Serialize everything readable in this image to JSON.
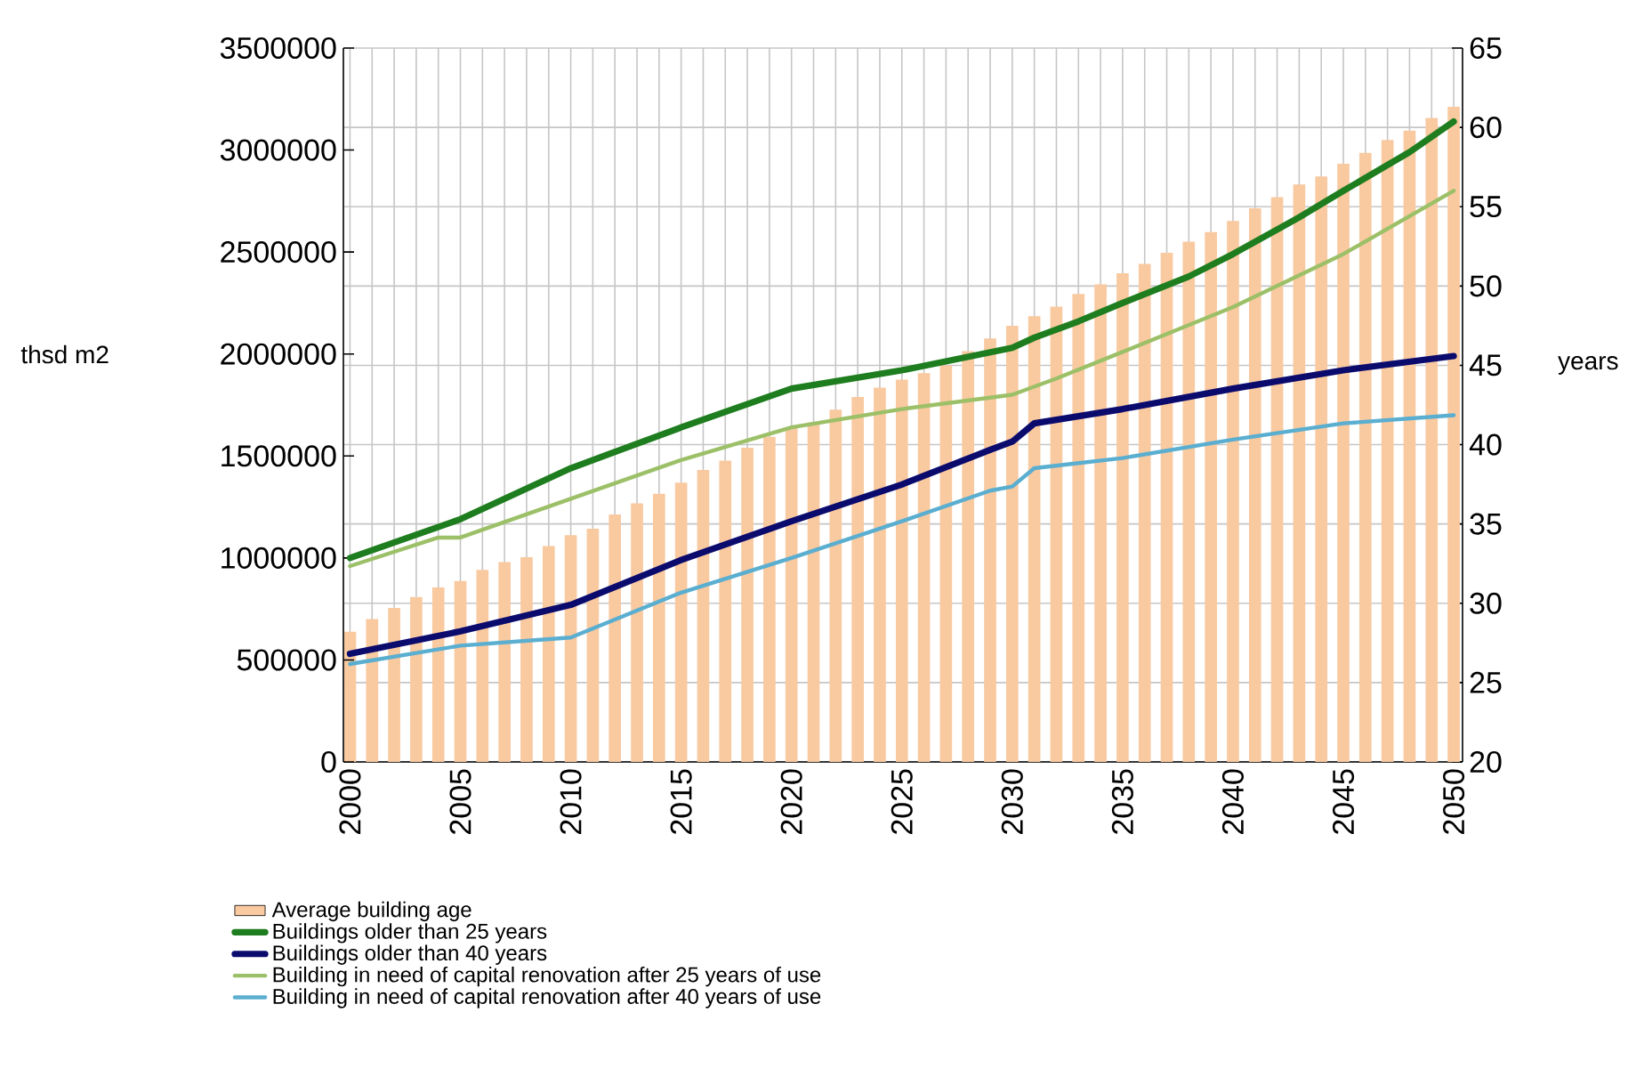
{
  "chart_data": {
    "type": "line",
    "ylabel": "thsd m2",
    "y2label": "years",
    "xlim": [
      1999.7,
      2050.4
    ],
    "ylim": [
      0,
      3500000
    ],
    "yticks": [
      0,
      500000,
      1000000,
      1500000,
      2000000,
      2500000,
      3000000,
      3500000
    ],
    "y2lim": [
      20,
      65
    ],
    "y2ticks": [
      20,
      25,
      30,
      35,
      40,
      45,
      50,
      55,
      60,
      65
    ],
    "xticks": [
      2000,
      {
        "value": 2001,
        "label": null
      },
      {
        "value": 2002,
        "label": null
      },
      {
        "value": 2003,
        "label": null
      },
      {
        "value": 2004,
        "label": null
      },
      2005,
      {
        "value": 2006,
        "label": null
      },
      {
        "value": 2007,
        "label": null
      },
      {
        "value": 2008,
        "label": null
      },
      {
        "value": 2009,
        "label": null
      },
      2010,
      {
        "value": 2011,
        "label": null
      },
      {
        "value": 2012,
        "label": null
      },
      {
        "value": 2013,
        "label": null
      },
      {
        "value": 2014,
        "label": null
      },
      2015,
      {
        "value": 2016,
        "label": null
      },
      {
        "value": 2017,
        "label": null
      },
      {
        "value": 2018,
        "label": null
      },
      {
        "value": 2019,
        "label": null
      },
      2020,
      {
        "value": 2021,
        "label": null
      },
      {
        "value": 2022,
        "label": null
      },
      {
        "value": 2023,
        "label": null
      },
      {
        "value": 2024,
        "label": null
      },
      2025,
      {
        "value": 2026,
        "label": null
      },
      {
        "value": 2027,
        "label": null
      },
      {
        "value": 2028,
        "label": null
      },
      {
        "value": 2029,
        "label": null
      },
      2030,
      {
        "value": 2031,
        "label": null
      },
      {
        "value": 2032,
        "label": null
      },
      {
        "value": 2033,
        "label": null
      },
      {
        "value": 2034,
        "label": null
      },
      2035,
      {
        "value": 2036,
        "label": null
      },
      {
        "value": 2037,
        "label": null
      },
      {
        "value": 2038,
        "label": null
      },
      {
        "value": 2039,
        "label": null
      },
      2040,
      {
        "value": 2041,
        "label": null
      },
      {
        "value": 2042,
        "label": null
      },
      {
        "value": 2043,
        "label": null
      },
      {
        "value": 2044,
        "label": null
      },
      2045,
      {
        "value": 2046,
        "label": null
      },
      {
        "value": 2047,
        "label": null
      },
      {
        "value": 2048,
        "label": null
      },
      {
        "value": 2049,
        "label": null
      },
      2050
    ],
    "grid": true,
    "legend": "bottom",
    "marker": "none",
    "line_style": "solid",
    "series": [
      {
        "name": "Average building age",
        "type": "bar",
        "axis": "y2",
        "color": "#f9c9a0",
        "x": [
          2000,
          2001,
          2002,
          2003,
          2004,
          2005,
          2006,
          2007,
          2008,
          2009,
          2010,
          2011,
          2012,
          2013,
          2014,
          2015,
          2016,
          2017,
          2018,
          2019,
          2020,
          2021,
          2022,
          2023,
          2024,
          2025,
          2026,
          2027,
          2028,
          2029,
          2030,
          2031,
          2032,
          2033,
          2034,
          2035,
          2036,
          2037,
          2038,
          2039,
          2040,
          2041,
          2042,
          2043,
          2044,
          2045,
          2046,
          2047,
          2048,
          2049,
          2050
        ],
        "values": [
          28.2,
          29.0,
          29.7,
          30.4,
          31.0,
          31.4,
          32.1,
          32.6,
          32.9,
          33.6,
          34.3,
          34.7,
          35.6,
          36.3,
          36.9,
          37.6,
          38.4,
          39.0,
          39.8,
          40.5,
          41.1,
          41.4,
          42.2,
          43.0,
          43.6,
          44.1,
          44.5,
          45.0,
          45.9,
          46.7,
          47.5,
          48.1,
          48.7,
          49.5,
          50.1,
          50.8,
          51.4,
          52.1,
          52.8,
          53.4,
          54.1,
          54.9,
          55.6,
          56.4,
          56.9,
          57.7,
          58.4,
          59.2,
          59.8,
          60.6,
          61.3
        ]
      },
      {
        "name": "Buildings older than 25 years",
        "color": "#1e7d1e",
        "x": [
          2000,
          2005,
          2010,
          2015,
          2020,
          2025,
          2030,
          2031,
          2033,
          2035,
          2038,
          2040,
          2043,
          2045,
          2048,
          2050
        ],
        "values": [
          1000000,
          1190000,
          1440000,
          1640000,
          1830000,
          1920000,
          2030000,
          2080000,
          2160000,
          2250000,
          2380000,
          2490000,
          2670000,
          2800000,
          2990000,
          3140000
        ]
      },
      {
        "name": "Buildings older than 40 years",
        "color": "#0b0b6e",
        "x": [
          2000,
          2005,
          2010,
          2015,
          2020,
          2025,
          2029,
          2030,
          2031,
          2035,
          2040,
          2045,
          2050
        ],
        "values": [
          530000,
          640000,
          770000,
          990000,
          1180000,
          1360000,
          1530000,
          1570000,
          1660000,
          1730000,
          1830000,
          1920000,
          1990000
        ]
      },
      {
        "name": "Building in need of capital renovation after 25 years of use",
        "color": "#9cc068",
        "x": [
          2000,
          2004,
          2005,
          2010,
          2015,
          2020,
          2025,
          2030,
          2032,
          2035,
          2040,
          2045,
          2050
        ],
        "values": [
          960000,
          1100000,
          1100000,
          1290000,
          1480000,
          1640000,
          1730000,
          1800000,
          1880000,
          2010000,
          2230000,
          2490000,
          2800000
        ]
      },
      {
        "name": "Building in need of capital renovation after 40 years of use",
        "color": "#5aaed0",
        "x": [
          2000,
          2005,
          2010,
          2015,
          2020,
          2025,
          2029,
          2030,
          2031,
          2035,
          2040,
          2045,
          2050
        ],
        "values": [
          480000,
          570000,
          610000,
          830000,
          1000000,
          1180000,
          1330000,
          1350000,
          1440000,
          1490000,
          1580000,
          1660000,
          1700000
        ]
      }
    ]
  }
}
